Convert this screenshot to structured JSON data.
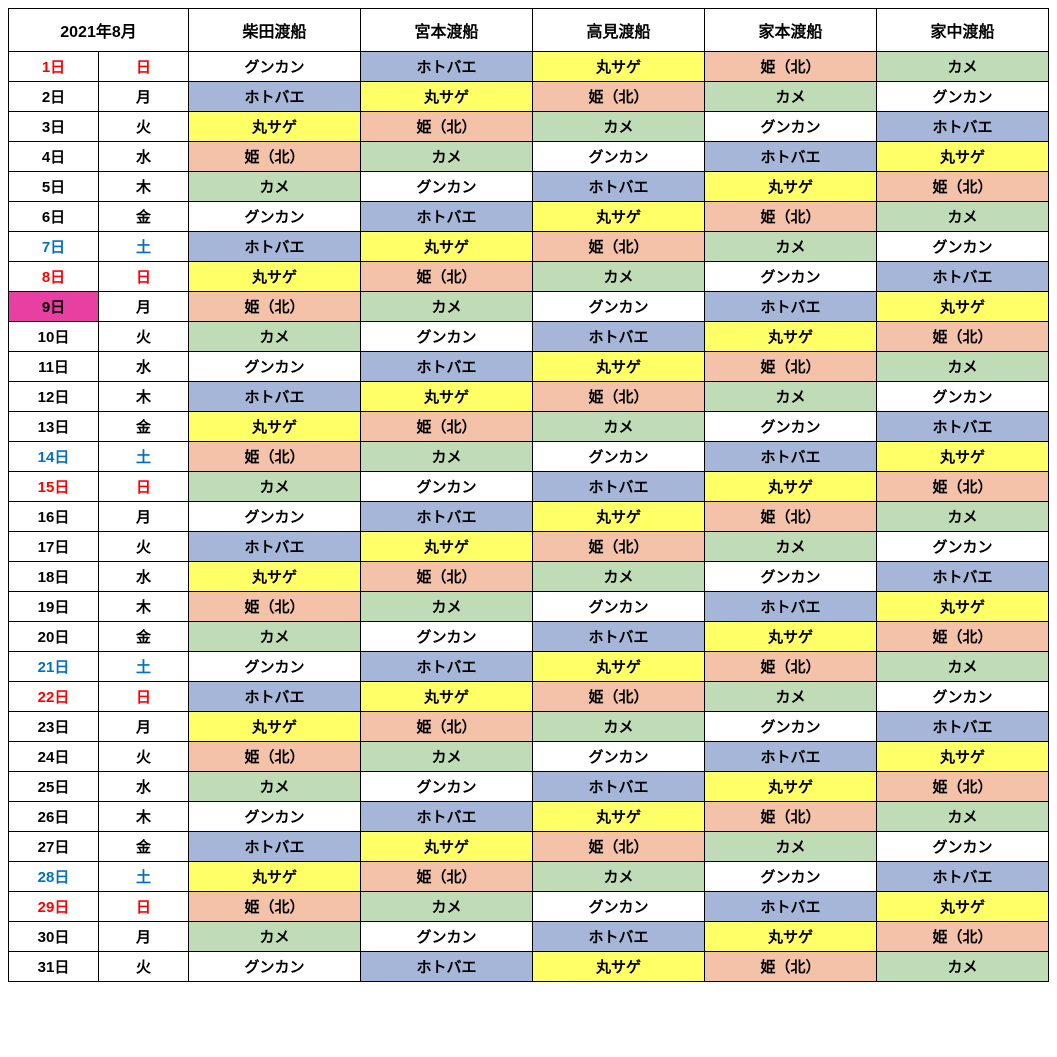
{
  "header": {
    "month": "2021年8月",
    "boats": [
      "柴田渡船",
      "宮本渡船",
      "高見渡船",
      "家本渡船",
      "家中渡船"
    ]
  },
  "colors": {
    "white": "#ffffff",
    "blue": "#a5b6d9",
    "yellow": "#ffff66",
    "peach": "#f4c2a8",
    "green": "#c0dcb6",
    "magenta": "#e83fa2",
    "text_default": "#000000",
    "text_sunday": "#ff0000",
    "text_saturday": "#0070c0"
  },
  "location_colors": {
    "グンカン": "white",
    "ホトバエ": "blue",
    "丸サゲ": "yellow",
    "姫（北）": "peach",
    "カメ": "green"
  },
  "rows": [
    {
      "date": "1日",
      "dow": "日",
      "dow_color": "text_sunday",
      "date_bg": "white",
      "cells": [
        "グンカン",
        "ホトバエ",
        "丸サゲ",
        "姫（北）",
        "カメ"
      ]
    },
    {
      "date": "2日",
      "dow": "月",
      "dow_color": "text_default",
      "date_bg": "white",
      "cells": [
        "ホトバエ",
        "丸サゲ",
        "姫（北）",
        "カメ",
        "グンカン"
      ]
    },
    {
      "date": "3日",
      "dow": "火",
      "dow_color": "text_default",
      "date_bg": "white",
      "cells": [
        "丸サゲ",
        "姫（北）",
        "カメ",
        "グンカン",
        "ホトバエ"
      ]
    },
    {
      "date": "4日",
      "dow": "水",
      "dow_color": "text_default",
      "date_bg": "white",
      "cells": [
        "姫（北）",
        "カメ",
        "グンカン",
        "ホトバエ",
        "丸サゲ"
      ]
    },
    {
      "date": "5日",
      "dow": "木",
      "dow_color": "text_default",
      "date_bg": "white",
      "cells": [
        "カメ",
        "グンカン",
        "ホトバエ",
        "丸サゲ",
        "姫（北）"
      ]
    },
    {
      "date": "6日",
      "dow": "金",
      "dow_color": "text_default",
      "date_bg": "white",
      "cells": [
        "グンカン",
        "ホトバエ",
        "丸サゲ",
        "姫（北）",
        "カメ"
      ]
    },
    {
      "date": "7日",
      "dow": "土",
      "dow_color": "text_saturday",
      "date_bg": "white",
      "cells": [
        "ホトバエ",
        "丸サゲ",
        "姫（北）",
        "カメ",
        "グンカン"
      ]
    },
    {
      "date": "8日",
      "dow": "日",
      "dow_color": "text_sunday",
      "date_bg": "white",
      "cells": [
        "丸サゲ",
        "姫（北）",
        "カメ",
        "グンカン",
        "ホトバエ"
      ]
    },
    {
      "date": "9日",
      "dow": "月",
      "dow_color": "text_default",
      "date_bg": "magenta",
      "cells": [
        "姫（北）",
        "カメ",
        "グンカン",
        "ホトバエ",
        "丸サゲ"
      ]
    },
    {
      "date": "10日",
      "dow": "火",
      "dow_color": "text_default",
      "date_bg": "white",
      "cells": [
        "カメ",
        "グンカン",
        "ホトバエ",
        "丸サゲ",
        "姫（北）"
      ]
    },
    {
      "date": "11日",
      "dow": "水",
      "dow_color": "text_default",
      "date_bg": "white",
      "cells": [
        "グンカン",
        "ホトバエ",
        "丸サゲ",
        "姫（北）",
        "カメ"
      ]
    },
    {
      "date": "12日",
      "dow": "木",
      "dow_color": "text_default",
      "date_bg": "white",
      "cells": [
        "ホトバエ",
        "丸サゲ",
        "姫（北）",
        "カメ",
        "グンカン"
      ]
    },
    {
      "date": "13日",
      "dow": "金",
      "dow_color": "text_default",
      "date_bg": "white",
      "cells": [
        "丸サゲ",
        "姫（北）",
        "カメ",
        "グンカン",
        "ホトバエ"
      ]
    },
    {
      "date": "14日",
      "dow": "土",
      "dow_color": "text_saturday",
      "date_bg": "white",
      "cells": [
        "姫（北）",
        "カメ",
        "グンカン",
        "ホトバエ",
        "丸サゲ"
      ]
    },
    {
      "date": "15日",
      "dow": "日",
      "dow_color": "text_sunday",
      "date_bg": "white",
      "cells": [
        "カメ",
        "グンカン",
        "ホトバエ",
        "丸サゲ",
        "姫（北）"
      ]
    },
    {
      "date": "16日",
      "dow": "月",
      "dow_color": "text_default",
      "date_bg": "white",
      "cells": [
        "グンカン",
        "ホトバエ",
        "丸サゲ",
        "姫（北）",
        "カメ"
      ]
    },
    {
      "date": "17日",
      "dow": "火",
      "dow_color": "text_default",
      "date_bg": "white",
      "cells": [
        "ホトバエ",
        "丸サゲ",
        "姫（北）",
        "カメ",
        "グンカン"
      ]
    },
    {
      "date": "18日",
      "dow": "水",
      "dow_color": "text_default",
      "date_bg": "white",
      "cells": [
        "丸サゲ",
        "姫（北）",
        "カメ",
        "グンカン",
        "ホトバエ"
      ]
    },
    {
      "date": "19日",
      "dow": "木",
      "dow_color": "text_default",
      "date_bg": "white",
      "cells": [
        "姫（北）",
        "カメ",
        "グンカン",
        "ホトバエ",
        "丸サゲ"
      ]
    },
    {
      "date": "20日",
      "dow": "金",
      "dow_color": "text_default",
      "date_bg": "white",
      "cells": [
        "カメ",
        "グンカン",
        "ホトバエ",
        "丸サゲ",
        "姫（北）"
      ]
    },
    {
      "date": "21日",
      "dow": "土",
      "dow_color": "text_saturday",
      "date_bg": "white",
      "cells": [
        "グンカン",
        "ホトバエ",
        "丸サゲ",
        "姫（北）",
        "カメ"
      ]
    },
    {
      "date": "22日",
      "dow": "日",
      "dow_color": "text_sunday",
      "date_bg": "white",
      "cells": [
        "ホトバエ",
        "丸サゲ",
        "姫（北）",
        "カメ",
        "グンカン"
      ]
    },
    {
      "date": "23日",
      "dow": "月",
      "dow_color": "text_default",
      "date_bg": "white",
      "cells": [
        "丸サゲ",
        "姫（北）",
        "カメ",
        "グンカン",
        "ホトバエ"
      ]
    },
    {
      "date": "24日",
      "dow": "火",
      "dow_color": "text_default",
      "date_bg": "white",
      "cells": [
        "姫（北）",
        "カメ",
        "グンカン",
        "ホトバエ",
        "丸サゲ"
      ]
    },
    {
      "date": "25日",
      "dow": "水",
      "dow_color": "text_default",
      "date_bg": "white",
      "cells": [
        "カメ",
        "グンカン",
        "ホトバエ",
        "丸サゲ",
        "姫（北）"
      ]
    },
    {
      "date": "26日",
      "dow": "木",
      "dow_color": "text_default",
      "date_bg": "white",
      "cells": [
        "グンカン",
        "ホトバエ",
        "丸サゲ",
        "姫（北）",
        "カメ"
      ]
    },
    {
      "date": "27日",
      "dow": "金",
      "dow_color": "text_default",
      "date_bg": "white",
      "cells": [
        "ホトバエ",
        "丸サゲ",
        "姫（北）",
        "カメ",
        "グンカン"
      ]
    },
    {
      "date": "28日",
      "dow": "土",
      "dow_color": "text_saturday",
      "date_bg": "white",
      "cells": [
        "丸サゲ",
        "姫（北）",
        "カメ",
        "グンカン",
        "ホトバエ"
      ]
    },
    {
      "date": "29日",
      "dow": "日",
      "dow_color": "text_sunday",
      "date_bg": "white",
      "cells": [
        "姫（北）",
        "カメ",
        "グンカン",
        "ホトバエ",
        "丸サゲ"
      ]
    },
    {
      "date": "30日",
      "dow": "月",
      "dow_color": "text_default",
      "date_bg": "white",
      "cells": [
        "カメ",
        "グンカン",
        "ホトバエ",
        "丸サゲ",
        "姫（北）"
      ]
    },
    {
      "date": "31日",
      "dow": "火",
      "dow_color": "text_default",
      "date_bg": "white",
      "cells": [
        "グンカン",
        "ホトバエ",
        "丸サゲ",
        "姫（北）",
        "カメ"
      ]
    }
  ]
}
